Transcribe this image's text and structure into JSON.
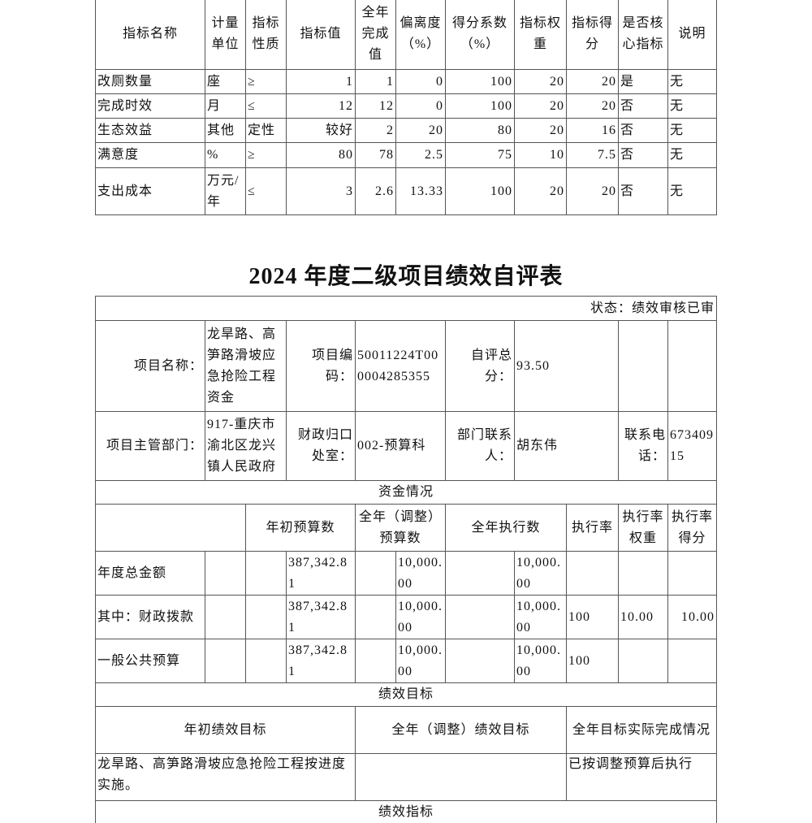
{
  "indicator_table": {
    "headers": [
      "指标名称",
      "计量单位",
      "指标性质",
      "指标值",
      "全年完成值",
      "偏离度（%）",
      "得分系数（%）",
      "指标权重",
      "指标得分",
      "是否核心指标",
      "说明"
    ],
    "rows": [
      [
        "改厕数量",
        "座",
        "≥",
        "1",
        "1",
        "0",
        "100",
        "20",
        "20",
        "是",
        "无"
      ],
      [
        "完成时效",
        "月",
        "≤",
        "12",
        "12",
        "0",
        "100",
        "20",
        "20",
        "否",
        "无"
      ],
      [
        "生态效益",
        "其他",
        "定性",
        "较好",
        "2",
        "20",
        "80",
        "20",
        "16",
        "否",
        "无"
      ],
      [
        "满意度",
        "%",
        "≥",
        "80",
        "78",
        "2.5",
        "75",
        "10",
        "7.5",
        "否",
        "无"
      ],
      [
        "支出成本",
        "万元/年",
        "≤",
        "3",
        "2.6",
        "13.33",
        "100",
        "20",
        "20",
        "否",
        "无"
      ]
    ]
  },
  "title": "2024 年度二级项目绩效自评表",
  "form": {
    "status": "状态：绩效审核已审",
    "project_name_label": "项目名称：",
    "project_name": "龙旱路、高笋路滑坡应急抢险工程资金",
    "project_code_label": "项目编码：",
    "project_code": "50011224T000004285355",
    "score_label": "自评总分：",
    "score": "93.50",
    "dept_label": "项目主管部门：",
    "dept": "917-重庆市渝北区龙兴镇人民政府",
    "office_label": "财政归口处室：",
    "office": "002-预算科",
    "contact_label": "部门联系人：",
    "contact": "胡东伟",
    "phone_label": "联系电话：",
    "phone": "67340915"
  },
  "funds": {
    "section": "资金情况",
    "headers": [
      "年初预算数",
      "全年（调整）预算数",
      "全年执行数",
      "执行率",
      "执行率权重",
      "执行率得分"
    ],
    "rows": [
      {
        "label": "年度总金额",
        "initial": "387,342.81",
        "adjusted": "10,000.00",
        "executed": "10,000.00",
        "rate": "",
        "weight": "",
        "score": ""
      },
      {
        "label": "其中：财政拨款",
        "initial": "387,342.81",
        "adjusted": "10,000.00",
        "executed": "10,000.00",
        "rate": "100",
        "weight": "10.00",
        "score": "10.00"
      },
      {
        "label": "一般公共预算",
        "initial": "387,342.81",
        "adjusted": "10,000.00",
        "executed": "10,000.00",
        "rate": "100",
        "weight": "",
        "score": ""
      }
    ]
  },
  "goals": {
    "section": "绩效目标",
    "headers": [
      "年初绩效目标",
      "全年（调整）绩效目标",
      "全年目标实际完成情况"
    ],
    "initial": "龙旱路、高笋路滑坡应急抢险工程按进度实施。",
    "adjusted": "",
    "actual": "已按调整预算后执行"
  },
  "indicators_section": "绩效指标"
}
